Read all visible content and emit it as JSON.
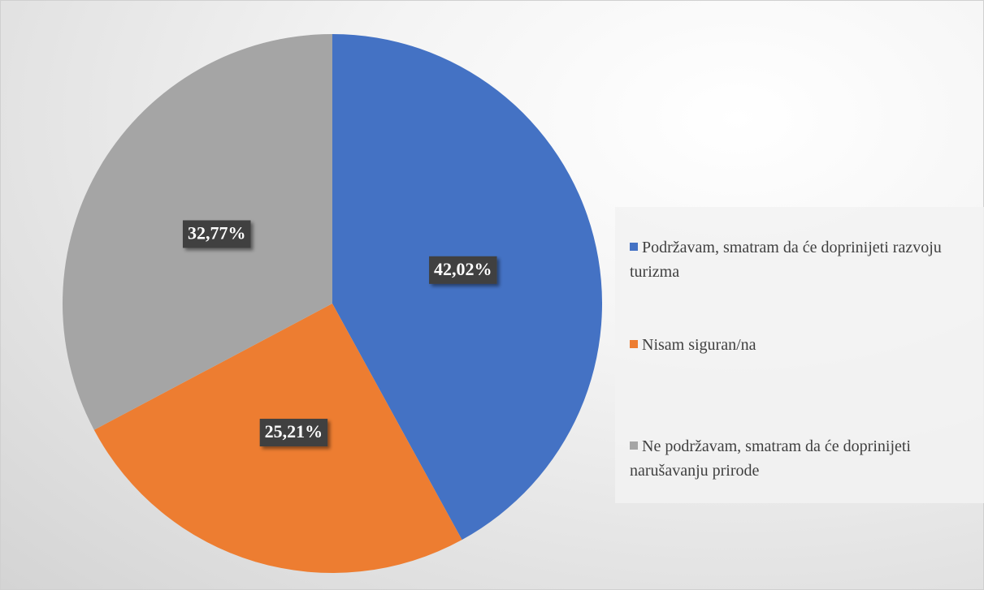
{
  "chart_data": {
    "type": "pie",
    "categories": [
      "Podržavam, smatram da će doprinijeti razvoju turizma",
      "Nisam siguran/na",
      "Ne podržavam, smatram da će doprinijeti narušavanju prirode"
    ],
    "values": [
      42.02,
      25.21,
      32.77
    ],
    "value_labels": [
      "42,02%",
      "25,21%",
      "32,77%"
    ],
    "colors": [
      "#4472c4",
      "#ed7d31",
      "#a5a5a5"
    ],
    "legend": "right"
  }
}
